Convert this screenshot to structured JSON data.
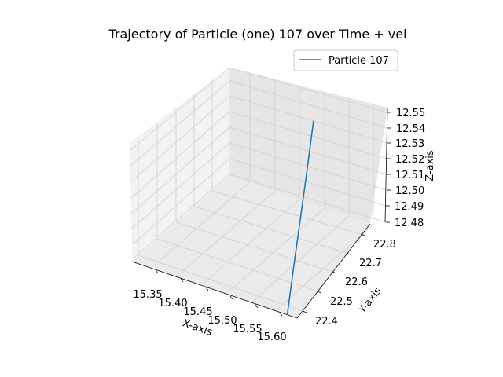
{
  "chart_data": {
    "type": "line3d",
    "title": "Trajectory of Particle (one) 107 over Time + vel",
    "xlabel": "X-axis",
    "ylabel": "Y-axis",
    "zlabel": "Z-axis",
    "x_ticks": [
      "15.35",
      "15.40",
      "15.45",
      "15.50",
      "15.55",
      "15.60"
    ],
    "y_ticks": [
      "22.4",
      "22.5",
      "22.6",
      "22.7",
      "22.8"
    ],
    "z_ticks": [
      "12.48",
      "12.49",
      "12.50",
      "12.51",
      "12.52",
      "12.53",
      "12.54",
      "12.55"
    ],
    "grid": true,
    "legend_position": "top-right",
    "series": [
      {
        "name": "Particle 107",
        "color": "#1f77b4",
        "x": [
          15.615,
          15.6,
          15.585,
          15.57,
          15.555
        ],
        "y": [
          22.35,
          22.45,
          22.55,
          22.65,
          22.75
        ],
        "z": [
          12.478,
          12.497,
          12.515,
          12.533,
          12.553
        ]
      }
    ]
  }
}
